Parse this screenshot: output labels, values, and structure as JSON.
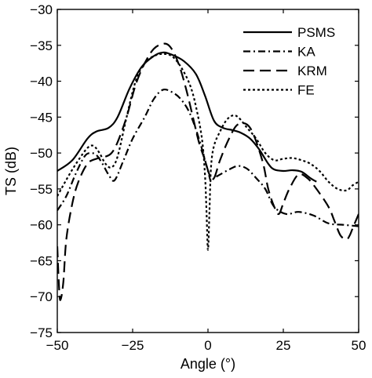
{
  "chart_data": {
    "type": "line",
    "title": "",
    "xlabel": "Angle (°)",
    "ylabel": "TS (dB)",
    "xlim": [
      -50,
      50
    ],
    "ylim": [
      -75,
      -30
    ],
    "xticks": [
      -50,
      -25,
      0,
      25,
      50
    ],
    "yticks": [
      -75,
      -70,
      -65,
      -60,
      -55,
      -50,
      -45,
      -40,
      -35,
      -30
    ],
    "grid": false,
    "legend_position": "top-right",
    "series": [
      {
        "name": "PSMS",
        "dash": "solid",
        "x": [
          -50,
          -45,
          -40,
          -37,
          -33,
          -30,
          -26,
          -22,
          -18,
          -15,
          -12,
          -8,
          -4,
          -1,
          2,
          5,
          8,
          11,
          14,
          17,
          20,
          22,
          25,
          28,
          31,
          34,
          36
        ],
        "y": [
          -52.5,
          -51,
          -48,
          -47,
          -46.5,
          -45,
          -41,
          -38,
          -36.5,
          -36,
          -36.3,
          -37.2,
          -39,
          -42,
          -45.5,
          -46.5,
          -46.8,
          -47.2,
          -48,
          -49.5,
          -51.5,
          -52.3,
          -52.5,
          -52.4,
          -52.6,
          -53.5,
          -54
        ]
      },
      {
        "name": "KA",
        "dash": "dashdot",
        "x": [
          -50,
          -47,
          -44,
          -41,
          -39,
          -37,
          -35,
          -33,
          -31,
          -28,
          -25,
          -21,
          -18,
          -15,
          -12,
          -9,
          -6,
          -3,
          0,
          1,
          2,
          4,
          7,
          10,
          13,
          16,
          19,
          22,
          26,
          30,
          35,
          40,
          45,
          50
        ],
        "y": [
          -58,
          -56,
          -53,
          -50.5,
          -50,
          -50.3,
          -51.5,
          -53,
          -53.8,
          -51,
          -48,
          -45,
          -42.5,
          -41.2,
          -41.5,
          -42.5,
          -44.5,
          -48,
          -52.5,
          -54,
          -53.5,
          -53,
          -52.3,
          -51.8,
          -52.2,
          -53.5,
          -55,
          -57.5,
          -58.5,
          -58.2,
          -58.7,
          -59.8,
          -60,
          -60.2
        ]
      },
      {
        "name": "KRM",
        "dash": "longdash",
        "x": [
          -50,
          -49.5,
          -49,
          -48,
          -47,
          -45,
          -43,
          -40,
          -37,
          -34,
          -32,
          -30,
          -27,
          -24,
          -21,
          -18,
          -15,
          -13,
          -11,
          -9,
          -7,
          -5,
          -3,
          -1,
          0.5,
          2,
          4,
          7,
          10,
          14,
          18,
          20,
          22,
          23.5,
          25,
          27,
          30,
          33,
          36,
          40,
          42,
          44,
          46,
          47,
          48,
          50
        ],
        "y": [
          -63,
          -68,
          -70.5,
          -68,
          -62,
          -57,
          -54,
          -51.5,
          -50.8,
          -50.5,
          -50,
          -48.5,
          -45,
          -40.5,
          -37.5,
          -35.5,
          -34.8,
          -35,
          -36.3,
          -38.5,
          -41.5,
          -45,
          -48.5,
          -51,
          -53,
          -53.5,
          -51,
          -48,
          -46,
          -46.5,
          -51,
          -55,
          -57.5,
          -58.5,
          -57,
          -55,
          -53,
          -53.5,
          -55,
          -57.5,
          -59.5,
          -61.5,
          -62,
          -61.5,
          -60.5,
          -58.5
        ]
      },
      {
        "name": "FE",
        "dash": "dotted",
        "x": [
          -50,
          -46,
          -43,
          -40,
          -38,
          -36,
          -34,
          -32,
          -30,
          -27,
          -24,
          -21,
          -18,
          -15,
          -12,
          -9,
          -6,
          -4,
          -2,
          -1,
          -0.5,
          0,
          0.5,
          1,
          2,
          4,
          6,
          8,
          10,
          13,
          16,
          19,
          22,
          25,
          28,
          31,
          34,
          37,
          40,
          43,
          46,
          48,
          50
        ],
        "y": [
          -56,
          -53,
          -51,
          -49.3,
          -49,
          -50,
          -51.5,
          -52,
          -50.5,
          -45,
          -40,
          -37.5,
          -36.5,
          -36.2,
          -36.5,
          -38,
          -40.5,
          -43.5,
          -48,
          -53,
          -58,
          -63.5,
          -58,
          -52,
          -49,
          -47,
          -45.5,
          -44.8,
          -45,
          -46.5,
          -48,
          -50,
          -51,
          -50.8,
          -50.7,
          -51,
          -51.5,
          -52.5,
          -54,
          -55,
          -55.2,
          -54.5,
          -54
        ]
      }
    ]
  }
}
